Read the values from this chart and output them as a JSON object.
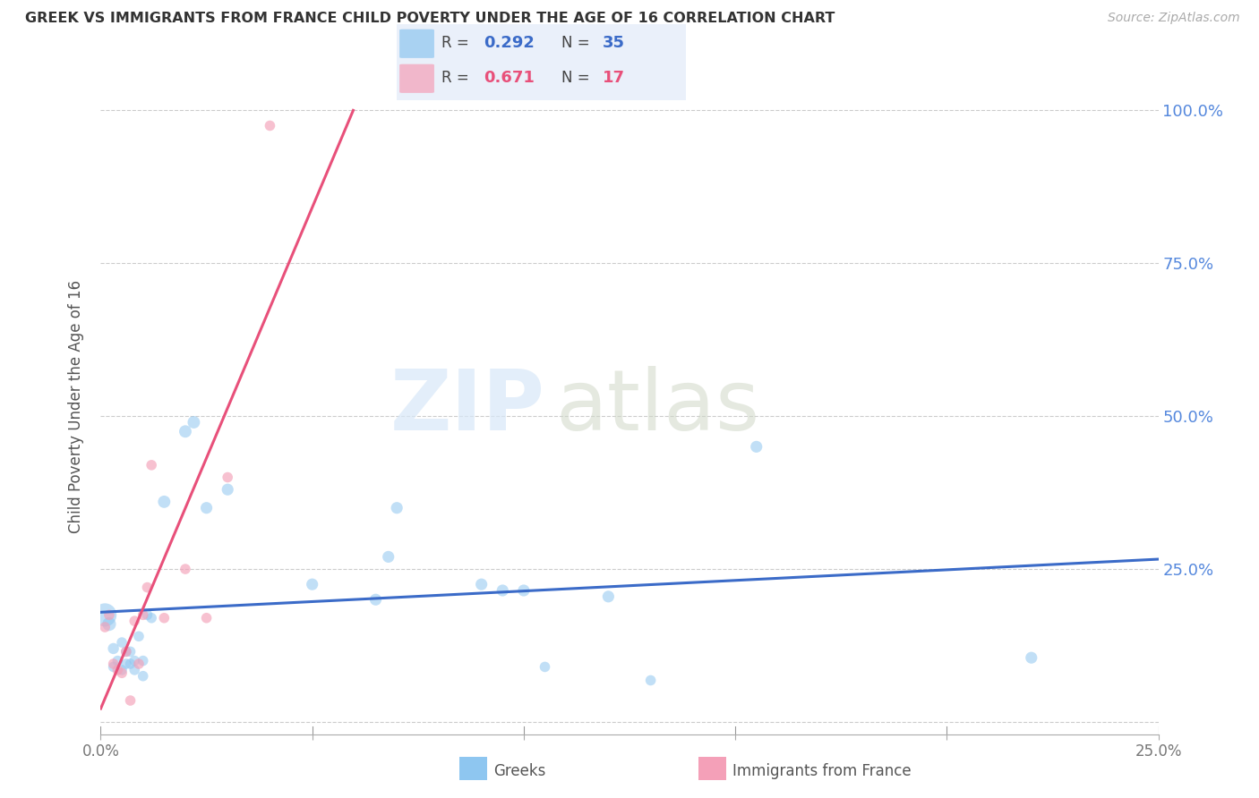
{
  "title": "GREEK VS IMMIGRANTS FROM FRANCE CHILD POVERTY UNDER THE AGE OF 16 CORRELATION CHART",
  "source": "Source: ZipAtlas.com",
  "ylabel": "Child Poverty Under the Age of 16",
  "xlim": [
    0.0,
    0.25
  ],
  "ylim": [
    -0.02,
    1.05
  ],
  "yticks": [
    0.0,
    0.25,
    0.5,
    0.75,
    1.0
  ],
  "ytick_labels": [
    "",
    "25.0%",
    "50.0%",
    "75.0%",
    "100.0%"
  ],
  "xticks": [
    0.0,
    0.05,
    0.1,
    0.15,
    0.2,
    0.25
  ],
  "xtick_labels": [
    "0.0%",
    "",
    "",
    "",
    "",
    "25.0%"
  ],
  "greek_color": "#8EC6F0",
  "france_color": "#F4A0B8",
  "greek_line_color": "#3B6BC8",
  "france_line_color": "#E8507A",
  "R_greek": 0.292,
  "N_greek": 35,
  "R_france": 0.671,
  "N_france": 17,
  "watermark_zip": "ZIP",
  "watermark_atlas": "atlas",
  "greeks_x": [
    0.001,
    0.002,
    0.003,
    0.003,
    0.004,
    0.005,
    0.005,
    0.006,
    0.006,
    0.007,
    0.007,
    0.008,
    0.008,
    0.009,
    0.01,
    0.01,
    0.011,
    0.012,
    0.015,
    0.02,
    0.022,
    0.025,
    0.03,
    0.05,
    0.065,
    0.068,
    0.07,
    0.09,
    0.095,
    0.1,
    0.105,
    0.12,
    0.13,
    0.155,
    0.22
  ],
  "greeks_y": [
    0.175,
    0.16,
    0.12,
    0.09,
    0.1,
    0.13,
    0.085,
    0.115,
    0.095,
    0.115,
    0.095,
    0.1,
    0.085,
    0.14,
    0.1,
    0.075,
    0.175,
    0.17,
    0.36,
    0.475,
    0.49,
    0.35,
    0.38,
    0.225,
    0.2,
    0.27,
    0.35,
    0.225,
    0.215,
    0.215,
    0.09,
    0.205,
    0.068,
    0.45,
    0.105
  ],
  "greeks_size": [
    350,
    120,
    80,
    70,
    70,
    70,
    70,
    70,
    70,
    70,
    70,
    70,
    70,
    70,
    70,
    70,
    70,
    70,
    100,
    100,
    100,
    90,
    90,
    90,
    90,
    90,
    90,
    90,
    90,
    90,
    70,
    90,
    70,
    90,
    90
  ],
  "france_x": [
    0.001,
    0.002,
    0.003,
    0.004,
    0.005,
    0.006,
    0.007,
    0.008,
    0.009,
    0.01,
    0.011,
    0.012,
    0.015,
    0.02,
    0.025,
    0.03,
    0.04
  ],
  "france_y": [
    0.155,
    0.175,
    0.095,
    0.085,
    0.08,
    0.115,
    0.035,
    0.165,
    0.095,
    0.175,
    0.22,
    0.42,
    0.17,
    0.25,
    0.17,
    0.4,
    0.975
  ],
  "france_size": [
    70,
    70,
    70,
    70,
    70,
    70,
    70,
    70,
    70,
    70,
    70,
    70,
    70,
    70,
    70,
    70,
    70
  ]
}
